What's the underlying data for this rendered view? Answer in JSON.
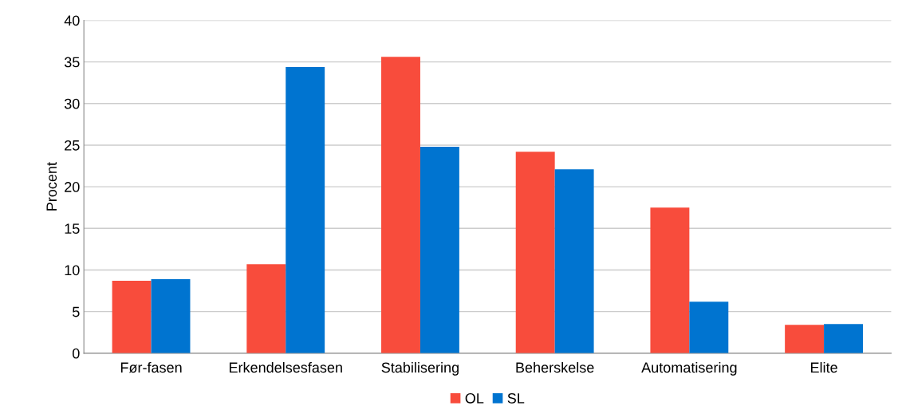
{
  "chart_data": {
    "type": "bar",
    "ylabel": "Procent",
    "categories": [
      "Før-fasen",
      "Erkendelsesfasen",
      "Stabilisering",
      "Beherskelse",
      "Automatisering",
      "Elite"
    ],
    "series": [
      {
        "name": "OL",
        "color": "#f84c3c",
        "values": [
          8.7,
          10.7,
          35.6,
          24.2,
          17.5,
          3.4
        ]
      },
      {
        "name": "SL",
        "color": "#0074d0",
        "values": [
          8.9,
          34.4,
          24.8,
          22.1,
          6.2,
          3.5
        ]
      }
    ],
    "ylim": [
      0,
      40
    ],
    "yticks": [
      0,
      5,
      10,
      15,
      20,
      25,
      30,
      35,
      40
    ],
    "grid": "y",
    "legend": "bottom"
  }
}
